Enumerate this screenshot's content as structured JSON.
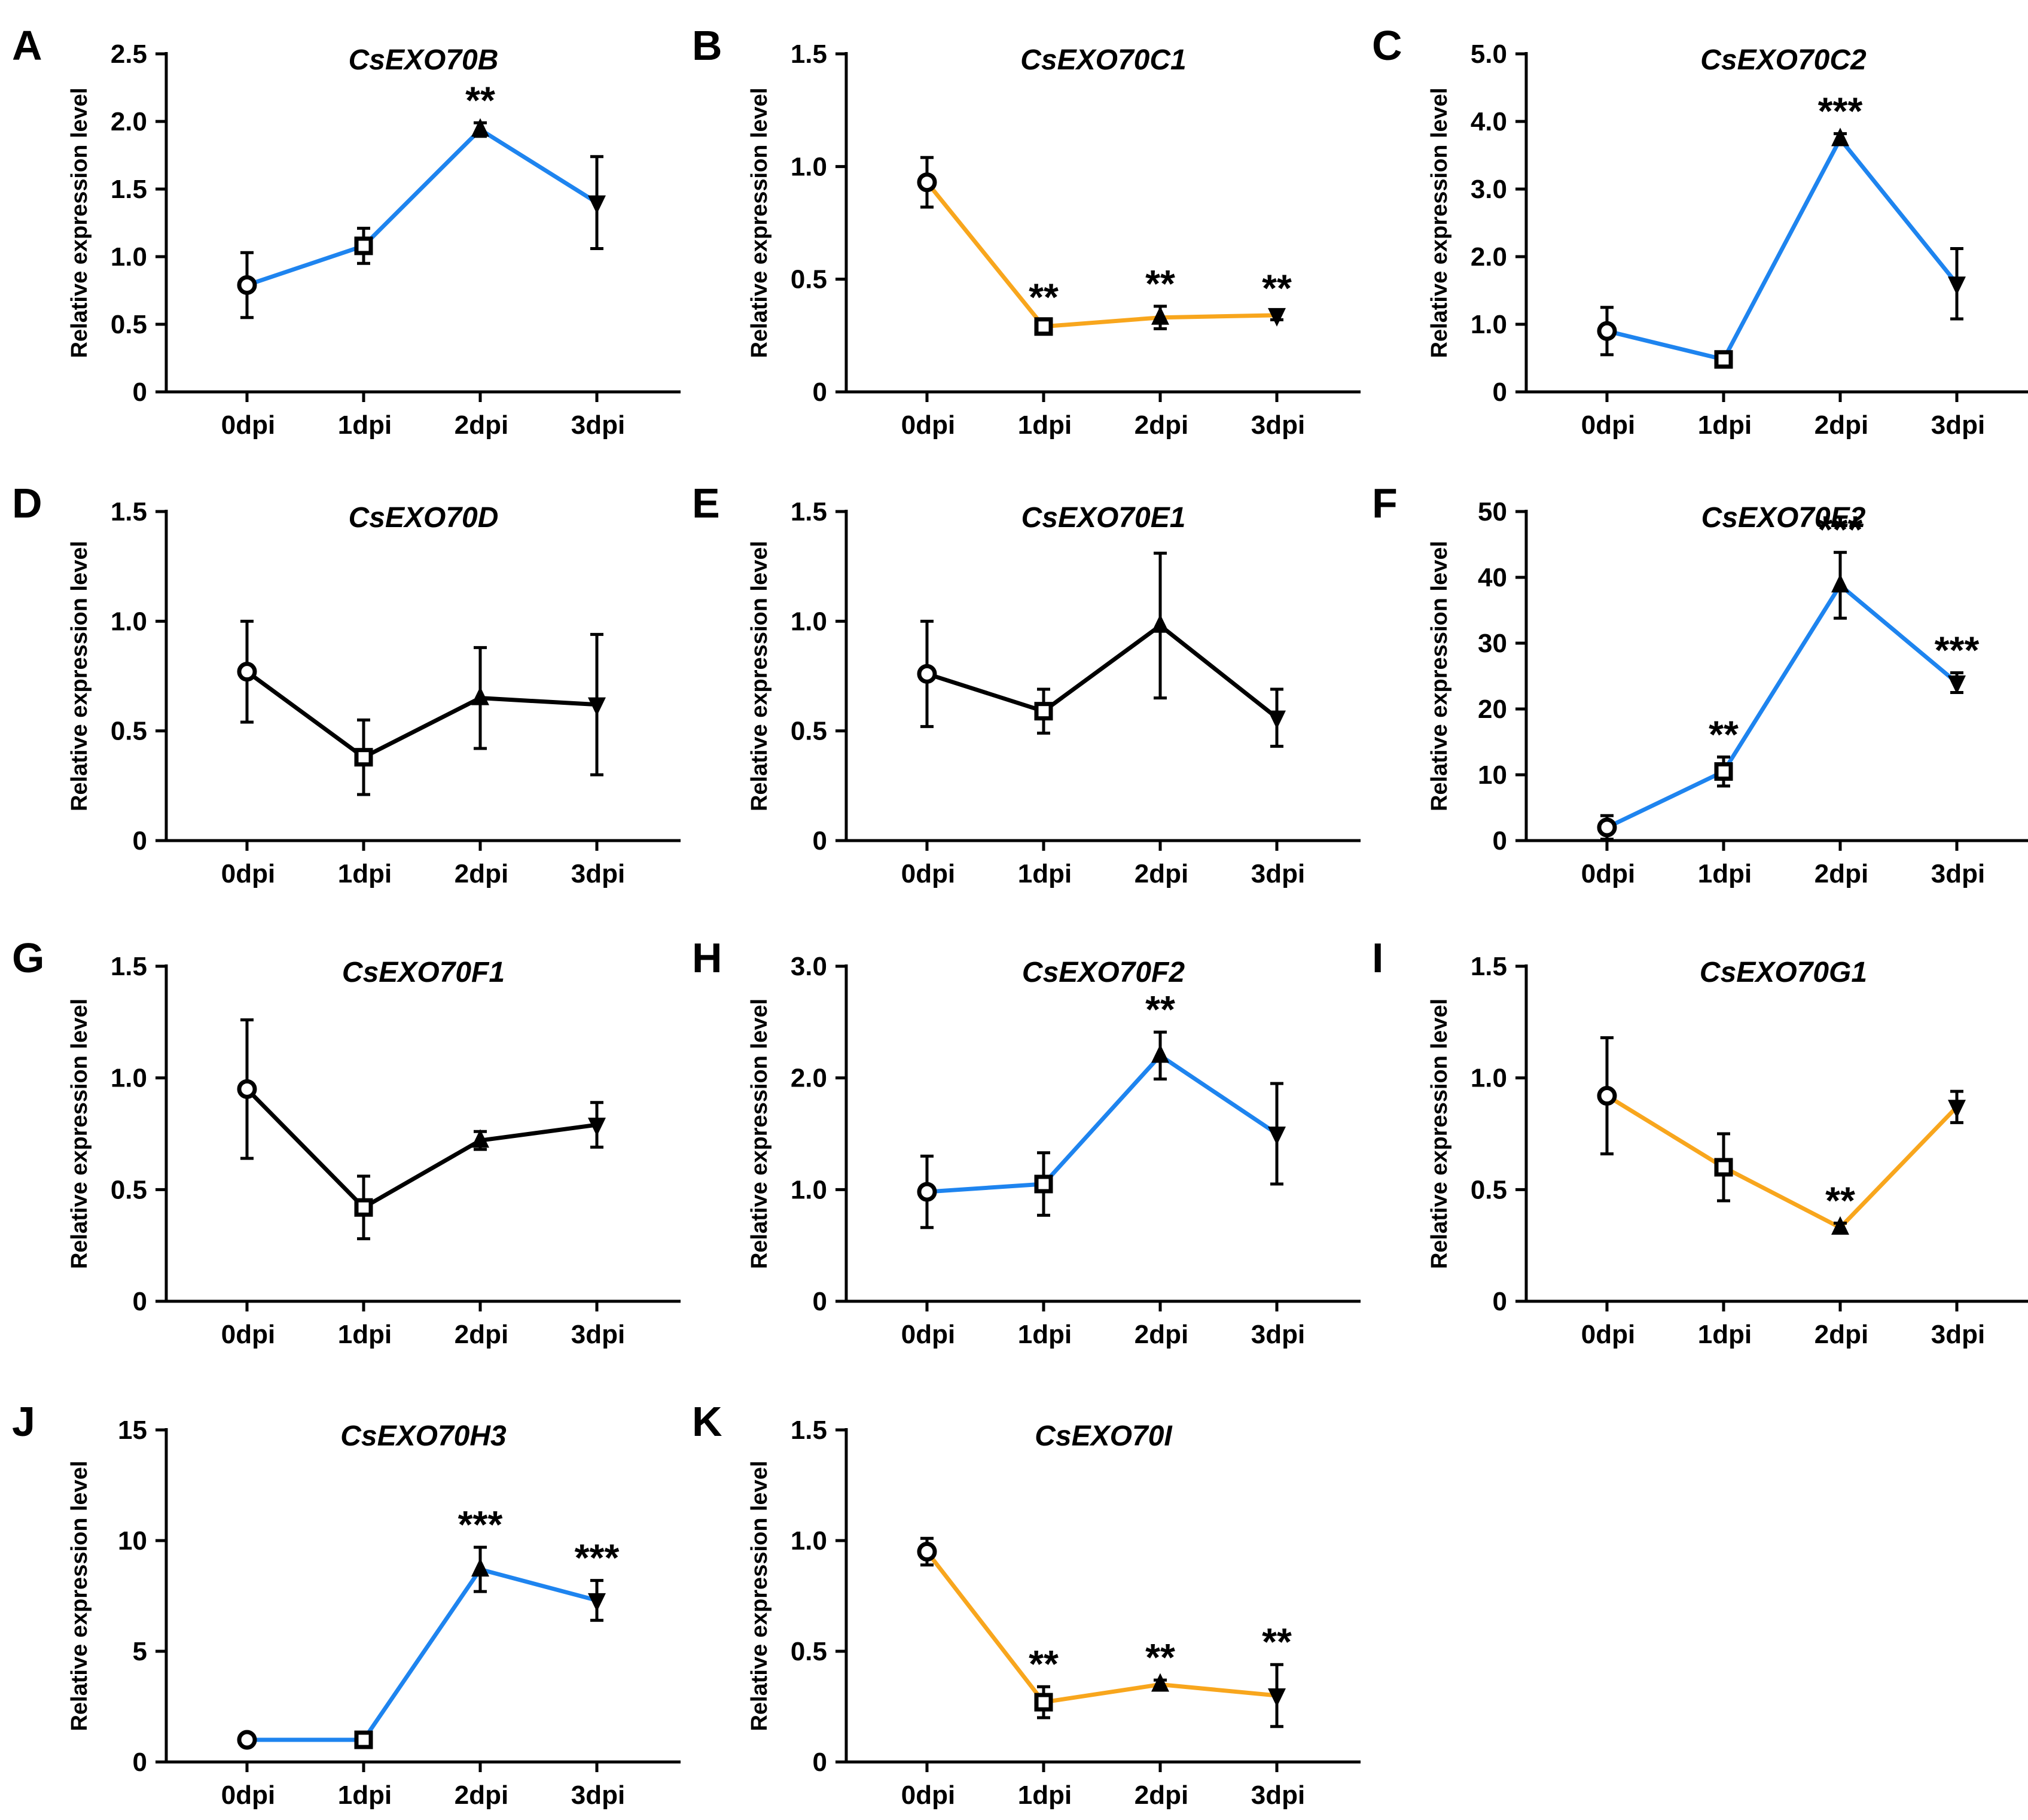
{
  "figure": {
    "colors": {
      "up": "#1e84ef",
      "down": "#f8a61d",
      "ns": "#000000"
    },
    "marker_names": [
      "circle",
      "square",
      "triangle-up",
      "triangle-down"
    ]
  },
  "chart_data": [
    {
      "panel": "A",
      "type": "line",
      "title": "CsEXO70B",
      "ylabel": "Relative expression level",
      "categories": [
        "0dpi",
        "1dpi",
        "2dpi",
        "3dpi"
      ],
      "y_ticks": [
        "0",
        "0.5",
        "1.0",
        "1.5",
        "2.0",
        "2.5"
      ],
      "ylim": [
        0,
        2.5
      ],
      "values": [
        0.79,
        1.08,
        1.94,
        1.4
      ],
      "errors": [
        0.24,
        0.13,
        0.05,
        0.34
      ],
      "significance": [
        "",
        "",
        "**",
        ""
      ],
      "trend": "up"
    },
    {
      "panel": "B",
      "type": "line",
      "title": "CsEXO70C1",
      "ylabel": "Relative expression level",
      "categories": [
        "0dpi",
        "1dpi",
        "2dpi",
        "3dpi"
      ],
      "y_ticks": [
        "0",
        "0.5",
        "1.0",
        "1.5"
      ],
      "ylim": [
        0,
        1.5
      ],
      "values": [
        0.93,
        0.29,
        0.33,
        0.34
      ],
      "errors": [
        0.11,
        0.03,
        0.05,
        0.02
      ],
      "significance": [
        "",
        "**",
        "**",
        "**"
      ],
      "trend": "down"
    },
    {
      "panel": "C",
      "type": "line",
      "title": "CsEXO70C2",
      "ylabel": "Relative expression level",
      "categories": [
        "0dpi",
        "1dpi",
        "2dpi",
        "3dpi"
      ],
      "y_ticks": [
        "0",
        "1.0",
        "2.0",
        "3.0",
        "4.0",
        "5.0"
      ],
      "ylim": [
        0,
        5.0
      ],
      "values": [
        0.9,
        0.48,
        3.74,
        1.6
      ],
      "errors": [
        0.35,
        0.06,
        0.08,
        0.52
      ],
      "significance": [
        "",
        "",
        "***",
        ""
      ],
      "trend": "up"
    },
    {
      "panel": "D",
      "type": "line",
      "title": "CsEXO70D",
      "ylabel": "Relative expression level",
      "categories": [
        "0dpi",
        "1dpi",
        "2dpi",
        "3dpi"
      ],
      "y_ticks": [
        "0",
        "0.5",
        "1.0",
        "1.5"
      ],
      "ylim": [
        0,
        1.5
      ],
      "values": [
        0.77,
        0.38,
        0.65,
        0.62
      ],
      "errors": [
        0.23,
        0.17,
        0.23,
        0.32
      ],
      "significance": [
        "",
        "",
        "",
        ""
      ],
      "trend": "ns"
    },
    {
      "panel": "E",
      "type": "line",
      "title": "CsEXO70E1",
      "ylabel": "Relative expression level",
      "categories": [
        "0dpi",
        "1dpi",
        "2dpi",
        "3dpi"
      ],
      "y_ticks": [
        "0",
        "0.5",
        "1.0",
        "1.5"
      ],
      "ylim": [
        0,
        1.5
      ],
      "values": [
        0.76,
        0.59,
        0.98,
        0.56
      ],
      "errors": [
        0.24,
        0.1,
        0.33,
        0.13
      ],
      "significance": [
        "",
        "",
        "",
        ""
      ],
      "trend": "ns"
    },
    {
      "panel": "F",
      "type": "line",
      "title": "CsEXO70E2",
      "ylabel": "Relative expression level",
      "categories": [
        "0dpi",
        "1dpi",
        "2dpi",
        "3dpi"
      ],
      "y_ticks": [
        "0",
        "10",
        "20",
        "30",
        "40",
        "50"
      ],
      "ylim": [
        0,
        50
      ],
      "values": [
        2.0,
        10.5,
        38.8,
        24.0
      ],
      "errors": [
        1.8,
        2.2,
        5.0,
        1.5
      ],
      "significance": [
        "",
        "**",
        "***",
        "***"
      ],
      "trend": "up"
    },
    {
      "panel": "G",
      "type": "line",
      "title": "CsEXO70F1",
      "ylabel": "Relative expression level",
      "categories": [
        "0dpi",
        "1dpi",
        "2dpi",
        "3dpi"
      ],
      "y_ticks": [
        "0",
        "0.5",
        "1.0",
        "1.5"
      ],
      "ylim": [
        0,
        1.5
      ],
      "values": [
        0.95,
        0.42,
        0.72,
        0.79
      ],
      "errors": [
        0.31,
        0.14,
        0.04,
        0.1
      ],
      "significance": [
        "",
        "",
        "",
        ""
      ],
      "trend": "ns"
    },
    {
      "panel": "H",
      "type": "line",
      "title": "CsEXO70F2",
      "ylabel": "Relative expression level",
      "categories": [
        "0dpi",
        "1dpi",
        "2dpi",
        "3dpi"
      ],
      "y_ticks": [
        "0",
        "1.0",
        "2.0",
        "3.0"
      ],
      "ylim": [
        0,
        3.0
      ],
      "values": [
        0.98,
        1.05,
        2.2,
        1.5
      ],
      "errors": [
        0.32,
        0.28,
        0.21,
        0.45
      ],
      "significance": [
        "",
        "",
        "**",
        ""
      ],
      "trend": "up"
    },
    {
      "panel": "I",
      "type": "line",
      "title": "CsEXO70G1",
      "ylabel": "Relative expression level",
      "categories": [
        "0dpi",
        "1dpi",
        "2dpi",
        "3dpi"
      ],
      "y_ticks": [
        "0",
        "0.5",
        "1.0",
        "1.5"
      ],
      "ylim": [
        0,
        1.5
      ],
      "values": [
        0.92,
        0.6,
        0.33,
        0.87
      ],
      "errors": [
        0.26,
        0.15,
        0.02,
        0.07
      ],
      "significance": [
        "",
        "",
        "**",
        ""
      ],
      "trend": "down"
    },
    {
      "panel": "J",
      "type": "line",
      "title": "CsEXO70H3",
      "ylabel": "Relative expression level",
      "categories": [
        "0dpi",
        "1dpi",
        "2dpi",
        "3dpi"
      ],
      "y_ticks": [
        "0",
        "5",
        "10",
        "15"
      ],
      "ylim": [
        0,
        15
      ],
      "values": [
        1.0,
        1.0,
        8.7,
        7.3
      ],
      "errors": [
        0.05,
        0.05,
        1.0,
        0.9
      ],
      "significance": [
        "",
        "",
        "***",
        "***"
      ],
      "trend": "up"
    },
    {
      "panel": "K",
      "type": "line",
      "title": "CsEXO70I",
      "ylabel": "Relative expression level",
      "categories": [
        "0dpi",
        "1dpi",
        "2dpi",
        "3dpi"
      ],
      "y_ticks": [
        "0",
        "0.5",
        "1.0",
        "1.5"
      ],
      "ylim": [
        0,
        1.5
      ],
      "values": [
        0.95,
        0.27,
        0.35,
        0.3
      ],
      "errors": [
        0.06,
        0.07,
        0.02,
        0.14
      ],
      "significance": [
        "",
        "**",
        "**",
        "**"
      ],
      "trend": "down"
    }
  ]
}
